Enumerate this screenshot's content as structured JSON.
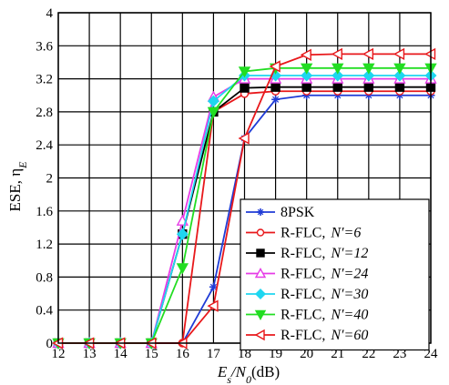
{
  "chart_data": {
    "type": "line",
    "xlabel_main": "E",
    "xlabel_sub1": "s",
    "xlabel_mid": "/N",
    "xlabel_sub2": "0",
    "xlabel_tail": "(dB)",
    "ylabel_main": "ESE, η",
    "ylabel_sub": "E",
    "xlim": [
      12,
      24
    ],
    "ylim": [
      0,
      4
    ],
    "xticks": [
      "12",
      "13",
      "14",
      "15",
      "16",
      "17",
      "18",
      "19",
      "20",
      "21",
      "22",
      "23",
      "24"
    ],
    "yticks": [
      "0",
      "0.4",
      "0.8",
      "1.2",
      "1.6",
      "2",
      "2.4",
      "2.8",
      "3.2",
      "3.6",
      "4"
    ],
    "grid": true,
    "legend_position": "bottom-right",
    "x": [
      12,
      13,
      14,
      15,
      16,
      17,
      18,
      19,
      20,
      21,
      22,
      23,
      24
    ],
    "series": [
      {
        "name": "8PSK",
        "label_main": "8PSK",
        "label_n": "",
        "color": "#1f3bd6",
        "marker": "star",
        "values": [
          0,
          0,
          0,
          0,
          0,
          0.68,
          2.48,
          2.95,
          3.0,
          3.0,
          3.0,
          3.0,
          3.0
        ]
      },
      {
        "name": "R-FLC, N'=6",
        "label_main": "R-FLC,",
        "label_n": "N′=6",
        "color": "#e8181b",
        "marker": "circle",
        "values": [
          0,
          0,
          0,
          0,
          0,
          2.8,
          3.02,
          3.05,
          3.05,
          3.05,
          3.05,
          3.05,
          3.05
        ]
      },
      {
        "name": "R-FLC, N'=12",
        "label_main": "R-FLC,",
        "label_n": "N′=12",
        "color": "#000000",
        "marker": "square",
        "values": [
          0,
          0,
          0,
          0,
          1.32,
          2.8,
          3.09,
          3.1,
          3.1,
          3.1,
          3.1,
          3.1,
          3.1
        ]
      },
      {
        "name": "R-FLC, N'=24",
        "label_main": "R-FLC,",
        "label_n": "N′=24",
        "color": "#e63be6",
        "marker": "triangle-up",
        "values": [
          0,
          0,
          0,
          0,
          1.48,
          2.98,
          3.2,
          3.2,
          3.2,
          3.2,
          3.2,
          3.2,
          3.2
        ]
      },
      {
        "name": "R-FLC, N'=30",
        "label_main": "R-FLC,",
        "label_n": "N′=30",
        "color": "#1fd6f0",
        "marker": "diamond",
        "values": [
          0,
          0,
          0,
          0,
          1.32,
          2.93,
          3.24,
          3.24,
          3.24,
          3.24,
          3.24,
          3.24,
          3.24
        ]
      },
      {
        "name": "R-FLC, N'=40",
        "label_main": "R-FLC,",
        "label_n": "N′=40",
        "color": "#22dd22",
        "marker": "triangle-down",
        "values": [
          0,
          0,
          0,
          0,
          0.91,
          2.8,
          3.29,
          3.33,
          3.33,
          3.33,
          3.33,
          3.33,
          3.33
        ]
      },
      {
        "name": "R-FLC, N'=60",
        "label_main": "R-FLC,",
        "label_n": "N′=60",
        "color": "#e8181b",
        "marker": "triangle-left",
        "values": [
          0,
          0,
          0,
          0,
          0,
          0.45,
          2.48,
          3.35,
          3.49,
          3.5,
          3.5,
          3.5,
          3.5
        ]
      }
    ]
  }
}
